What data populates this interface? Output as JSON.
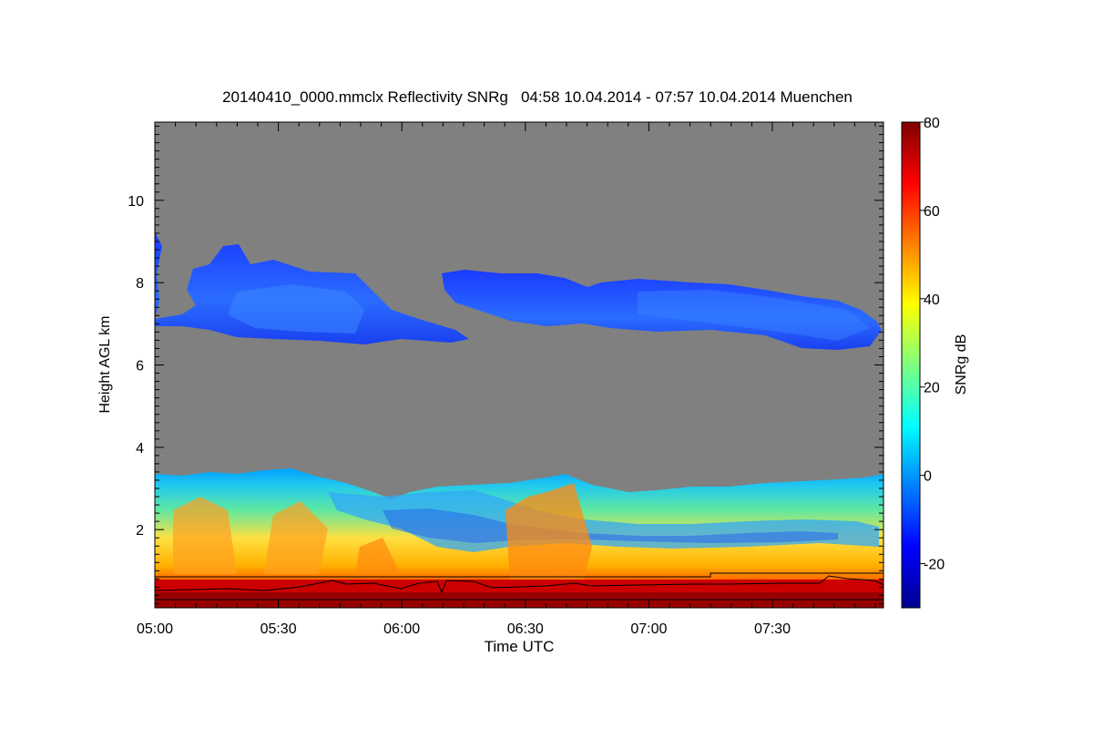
{
  "chart_data": {
    "type": "heatmap",
    "title": "20140410_0000.mmclx Reflectivity SNRg   04:58 10.04.2014 - 07:57 10.04.2014 Muenchen",
    "xlabel": "Time UTC",
    "ylabel": "Height AGL km",
    "colorbar_label": "SNRg dB",
    "x_ticks": [
      "05:00",
      "05:30",
      "06:00",
      "06:30",
      "07:00",
      "07:30"
    ],
    "y_ticks": [
      "2",
      "4",
      "6",
      "8",
      "10"
    ],
    "colorbar_ticks": [
      "80",
      "60",
      "40",
      "20",
      "0",
      "-20"
    ],
    "xlim_minutes_utc": [
      300,
      477
    ],
    "ylim_km": [
      0.1,
      11.9
    ],
    "clim_db": [
      -30,
      80
    ],
    "background_color": "#808080",
    "colormap": "jet",
    "features": [
      {
        "name": "upper cloud layer",
        "time_start": "05:00",
        "time_end": "07:57",
        "height_km": [
          6.4,
          9.5
        ],
        "snr_db": [
          -25,
          -5
        ]
      },
      {
        "name": "boundary layer echo",
        "time_start": "05:00",
        "time_end": "07:57",
        "height_km": [
          0.1,
          3.6
        ],
        "snr_db": [
          0,
          80
        ]
      }
    ]
  }
}
